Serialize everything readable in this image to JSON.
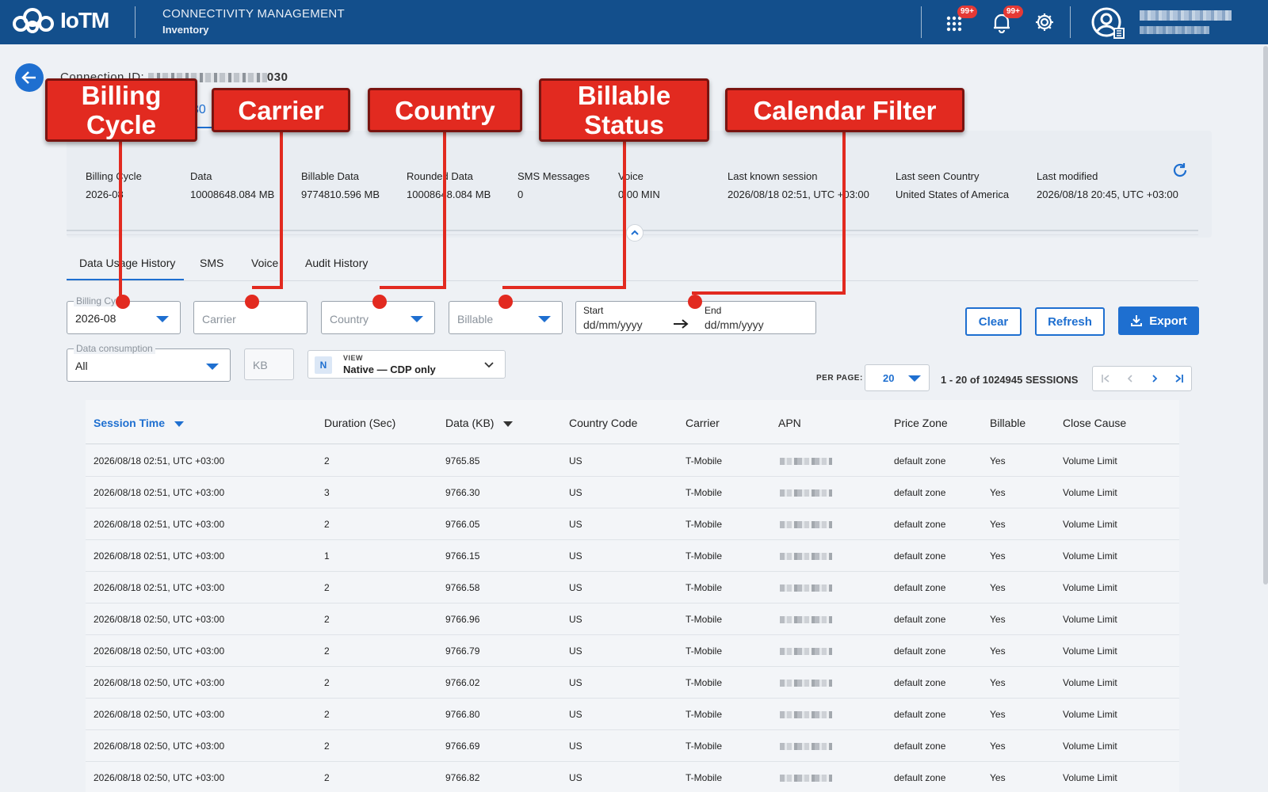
{
  "header": {
    "logo_text": "IoTM",
    "app_title": "CONNECTIVITY MANAGEMENT",
    "app_subtitle": "Inventory",
    "apps_badge": "99+",
    "notifications_badge": "99+"
  },
  "connection": {
    "label": "Connection ID:",
    "id_suffix": "030",
    "tab_peek": "30"
  },
  "summary": [
    {
      "label": "Billing Cycle",
      "value": "2026-08"
    },
    {
      "label": "Data",
      "value": "10008648.084 MB"
    },
    {
      "label": "Billable Data",
      "value": "9774810.596 MB"
    },
    {
      "label": "Rounded Data",
      "value": "10008648.084 MB"
    },
    {
      "label": "SMS Messages",
      "value": "0"
    },
    {
      "label": "Voice",
      "value": "0.00 MIN"
    },
    {
      "label": "Last known session",
      "value": "2026/08/18 02:51, UTC +03:00"
    },
    {
      "label": "Last seen Country",
      "value": "United States of America"
    },
    {
      "label": "Last modified",
      "value": "2026/08/18 20:45, UTC +03:00"
    }
  ],
  "subtabs": [
    "Data Usage History",
    "SMS",
    "Voice",
    "Audit History"
  ],
  "filters": {
    "billing_cycle_label": "Billing Cycle",
    "billing_cycle_value": "2026-08",
    "carrier_placeholder": "Carrier",
    "country_placeholder": "Country",
    "billable_placeholder": "Billable",
    "start_label": "Start",
    "end_label": "End",
    "date_placeholder": "dd/mm/yyyy",
    "data_consumption_label": "Data consumption",
    "data_consumption_value": "All",
    "unit_placeholder": "KB",
    "view_badge": "N",
    "view_small": "VIEW",
    "view_value": "Native — CDP only"
  },
  "actions": {
    "clear": "Clear",
    "refresh": "Refresh",
    "export": "Export"
  },
  "pagination": {
    "per_page_label": "PER PAGE:",
    "per_page_value": "20",
    "range_text": "1 - 20 of 1024945 SESSIONS"
  },
  "table": {
    "columns": [
      "Session Time",
      "Duration (Sec)",
      "Data (KB)",
      "Country Code",
      "Carrier",
      "APN",
      "Price Zone",
      "Billable",
      "Close Cause"
    ],
    "rows": [
      [
        "2026/08/18 02:51, UTC +03:00",
        "2",
        "9765.85",
        "US",
        "T-Mobile",
        "default zone",
        "Yes",
        "Volume Limit"
      ],
      [
        "2026/08/18 02:51, UTC +03:00",
        "3",
        "9766.30",
        "US",
        "T-Mobile",
        "default zone",
        "Yes",
        "Volume Limit"
      ],
      [
        "2026/08/18 02:51, UTC +03:00",
        "2",
        "9766.05",
        "US",
        "T-Mobile",
        "default zone",
        "Yes",
        "Volume Limit"
      ],
      [
        "2026/08/18 02:51, UTC +03:00",
        "1",
        "9766.15",
        "US",
        "T-Mobile",
        "default zone",
        "Yes",
        "Volume Limit"
      ],
      [
        "2026/08/18 02:51, UTC +03:00",
        "2",
        "9766.58",
        "US",
        "T-Mobile",
        "default zone",
        "Yes",
        "Volume Limit"
      ],
      [
        "2026/08/18 02:50, UTC +03:00",
        "2",
        "9766.96",
        "US",
        "T-Mobile",
        "default zone",
        "Yes",
        "Volume Limit"
      ],
      [
        "2026/08/18 02:50, UTC +03:00",
        "2",
        "9766.79",
        "US",
        "T-Mobile",
        "default zone",
        "Yes",
        "Volume Limit"
      ],
      [
        "2026/08/18 02:50, UTC +03:00",
        "2",
        "9766.02",
        "US",
        "T-Mobile",
        "default zone",
        "Yes",
        "Volume Limit"
      ],
      [
        "2026/08/18 02:50, UTC +03:00",
        "2",
        "9766.80",
        "US",
        "T-Mobile",
        "default zone",
        "Yes",
        "Volume Limit"
      ],
      [
        "2026/08/18 02:50, UTC +03:00",
        "2",
        "9766.69",
        "US",
        "T-Mobile",
        "default zone",
        "Yes",
        "Volume Limit"
      ],
      [
        "2026/08/18 02:50, UTC +03:00",
        "2",
        "9766.82",
        "US",
        "T-Mobile",
        "default zone",
        "Yes",
        "Volume Limit"
      ]
    ]
  },
  "callouts": [
    {
      "label": "Billing\nCycle"
    },
    {
      "label": "Carrier"
    },
    {
      "label": "Country"
    },
    {
      "label": "Billable\nStatus"
    },
    {
      "label": "Calendar Filter"
    }
  ]
}
